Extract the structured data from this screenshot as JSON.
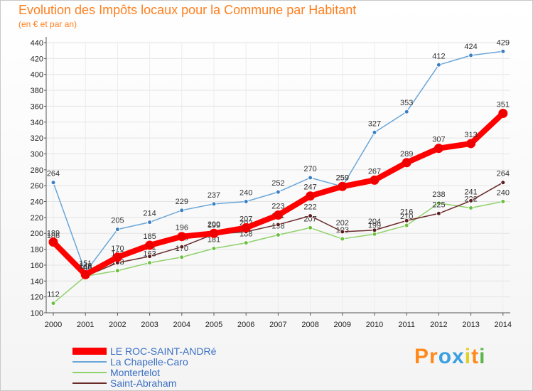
{
  "chart_data": {
    "type": "line",
    "title": "Evolution des Impôts locaux pour la Commune par Habitant",
    "subtitle": "(en € et par an)",
    "xlabel": "",
    "ylabel": "",
    "ylim": [
      100,
      440
    ],
    "yticks": [
      100,
      120,
      140,
      160,
      180,
      200,
      220,
      240,
      260,
      280,
      300,
      320,
      340,
      360,
      380,
      400,
      420,
      440
    ],
    "x": [
      "2000",
      "2001",
      "2002",
      "2003",
      "2004",
      "2005",
      "2006",
      "2007",
      "2008",
      "2009",
      "2010",
      "2011",
      "2012",
      "2013",
      "2014"
    ],
    "series": [
      {
        "name": "La Chapelle-Caro",
        "color": "#6aa6d8",
        "marker": "#3b7fc4",
        "values": [
          264,
          151,
          205,
          214,
          229,
          237,
          240,
          252,
          270,
          259,
          327,
          353,
          412,
          424,
          429
        ]
      },
      {
        "name": "Montertelot",
        "color": "#8fd16a",
        "marker": "#6bbf3f",
        "values": [
          112,
          146,
          153,
          163,
          170,
          181,
          188,
          198,
          207,
          193,
          199,
          210,
          238,
          232,
          240
        ]
      },
      {
        "name": "Saint-Abraham",
        "color": "#6b2b2b",
        "marker": "#5a1e1e",
        "values": [
          186,
          146,
          163,
          171,
          183,
          199,
          202,
          211,
          222,
          202,
          204,
          216,
          225,
          241,
          264
        ]
      },
      {
        "name": "LE ROC-SAINT-ANDRé",
        "color": "#ff0000",
        "marker": "#ee0000",
        "values": [
          189,
          148,
          170,
          185,
          196,
          200,
          207,
          223,
          247,
          259,
          267,
          289,
          307,
          313,
          351
        ]
      }
    ],
    "labels": {
      "La Chapelle-Caro": [
        "264",
        "151",
        "205",
        "214",
        "229",
        "237",
        "240",
        "252",
        "270",
        "259",
        "327",
        "353",
        "412",
        "424",
        "429"
      ],
      "Montertelot": [
        "112",
        "146",
        "153",
        "163",
        "170",
        "181",
        "188",
        "198",
        "207",
        "193",
        "199",
        "210",
        "238",
        "232",
        "240"
      ],
      "Saint-Abraham": [
        "186",
        "146",
        "163",
        "171",
        "183",
        "199",
        "202",
        "211",
        "222",
        "202",
        "204",
        "216",
        "225",
        "241",
        "264"
      ],
      "LE ROC-SAINT-ANDRé": [
        "189",
        "148",
        "170",
        "185",
        "196",
        "200",
        "207",
        "223",
        "247",
        "259",
        "267",
        "289",
        "307",
        "313",
        "351"
      ]
    },
    "legend": [
      "LE ROC-SAINT-ANDRé",
      "La Chapelle-Caro",
      "Montertelot",
      "Saint-Abraham"
    ],
    "legend_position": "bottom-left"
  },
  "logo": {
    "text": "Proxiti",
    "letters": [
      "P",
      "r",
      "o",
      "x",
      "i",
      "t",
      "i"
    ],
    "colors": [
      "#ff8a1a",
      "#ff8a1a",
      "#3aa0e0",
      "#3aa0e0",
      "#e0d020",
      "#ff8a1a",
      "#5fb54a"
    ]
  }
}
